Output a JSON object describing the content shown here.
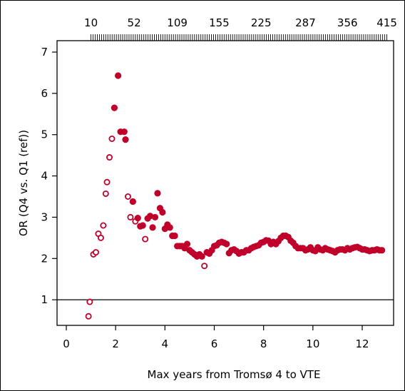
{
  "chart_data": {
    "type": "scatter",
    "title": "",
    "xlabel": "Max years from Tromsø 4 to VTE",
    "ylabel": "OR (Q4 vs. Q1 (ref))",
    "xlim": [
      -0.2,
      13.2
    ],
    "ylim": [
      0.0,
      7.3
    ],
    "x_ticks": [
      0,
      2,
      4,
      6,
      8,
      10,
      12
    ],
    "y_ticks": [
      1,
      2,
      3,
      4,
      5,
      6,
      7
    ],
    "reference_line_y": 1,
    "top_axis": {
      "description": "cumulative number of VTE events",
      "ticks": [
        {
          "x": 1.0,
          "label": "10"
        },
        {
          "x": 2.75,
          "label": "52"
        },
        {
          "x": 4.5,
          "label": "109"
        },
        {
          "x": 6.2,
          "label": "155"
        },
        {
          "x": 7.9,
          "label": "225"
        },
        {
          "x": 9.7,
          "label": "287"
        },
        {
          "x": 11.4,
          "label": "356"
        },
        {
          "x": 13.0,
          "label": "415"
        }
      ]
    },
    "marker_color": "#c0002a",
    "series": [
      {
        "marker": "open",
        "points": [
          [
            0.9,
            0.6
          ],
          [
            0.95,
            0.95
          ],
          [
            1.1,
            2.1
          ],
          [
            1.2,
            2.15
          ],
          [
            1.3,
            2.6
          ],
          [
            1.4,
            2.5
          ],
          [
            1.5,
            2.8
          ],
          [
            1.6,
            3.57
          ],
          [
            1.65,
            3.85
          ],
          [
            1.75,
            4.45
          ],
          [
            1.85,
            4.9
          ],
          [
            2.5,
            3.5
          ],
          [
            2.6,
            3.0
          ],
          [
            2.8,
            2.9
          ],
          [
            3.2,
            2.47
          ],
          [
            5.6,
            1.82
          ]
        ]
      },
      {
        "marker": "filled",
        "points": [
          [
            1.95,
            5.65
          ],
          [
            2.1,
            6.43
          ],
          [
            2.2,
            5.07
          ],
          [
            2.35,
            5.07
          ],
          [
            2.4,
            4.88
          ],
          [
            2.7,
            3.38
          ],
          [
            2.9,
            2.98
          ],
          [
            3.0,
            2.78
          ],
          [
            3.1,
            2.8
          ],
          [
            3.3,
            2.97
          ],
          [
            3.4,
            3.03
          ],
          [
            3.5,
            2.75
          ],
          [
            3.6,
            3.0
          ],
          [
            3.7,
            3.58
          ],
          [
            3.8,
            3.22
          ],
          [
            3.9,
            3.12
          ],
          [
            4.0,
            2.72
          ],
          [
            4.1,
            2.82
          ],
          [
            4.2,
            2.75
          ],
          [
            4.3,
            2.55
          ],
          [
            4.4,
            2.55
          ],
          [
            4.5,
            2.3
          ],
          [
            4.6,
            2.3
          ],
          [
            4.7,
            2.3
          ],
          [
            4.8,
            2.25
          ],
          [
            4.9,
            2.35
          ],
          [
            5.0,
            2.2
          ],
          [
            5.1,
            2.15
          ],
          [
            5.2,
            2.1
          ],
          [
            5.3,
            2.05
          ],
          [
            5.4,
            2.1
          ],
          [
            5.5,
            2.05
          ],
          [
            5.7,
            2.15
          ],
          [
            5.8,
            2.12
          ],
          [
            5.9,
            2.2
          ],
          [
            6.0,
            2.3
          ],
          [
            6.1,
            2.32
          ],
          [
            6.2,
            2.38
          ],
          [
            6.3,
            2.4
          ],
          [
            6.4,
            2.38
          ],
          [
            6.5,
            2.35
          ],
          [
            6.6,
            2.13
          ],
          [
            6.7,
            2.2
          ],
          [
            6.8,
            2.22
          ],
          [
            6.9,
            2.18
          ],
          [
            7.0,
            2.12
          ],
          [
            7.1,
            2.15
          ],
          [
            7.2,
            2.15
          ],
          [
            7.3,
            2.2
          ],
          [
            7.4,
            2.2
          ],
          [
            7.5,
            2.25
          ],
          [
            7.6,
            2.28
          ],
          [
            7.7,
            2.3
          ],
          [
            7.8,
            2.32
          ],
          [
            7.9,
            2.38
          ],
          [
            8.0,
            2.4
          ],
          [
            8.1,
            2.44
          ],
          [
            8.2,
            2.43
          ],
          [
            8.3,
            2.35
          ],
          [
            8.4,
            2.4
          ],
          [
            8.5,
            2.35
          ],
          [
            8.6,
            2.42
          ],
          [
            8.7,
            2.5
          ],
          [
            8.8,
            2.55
          ],
          [
            8.9,
            2.55
          ],
          [
            9.0,
            2.52
          ],
          [
            9.1,
            2.43
          ],
          [
            9.2,
            2.38
          ],
          [
            9.3,
            2.3
          ],
          [
            9.4,
            2.25
          ],
          [
            9.5,
            2.25
          ],
          [
            9.6,
            2.25
          ],
          [
            9.7,
            2.2
          ],
          [
            9.8,
            2.22
          ],
          [
            9.9,
            2.27
          ],
          [
            10.0,
            2.2
          ],
          [
            10.1,
            2.18
          ],
          [
            10.2,
            2.27
          ],
          [
            10.3,
            2.22
          ],
          [
            10.4,
            2.2
          ],
          [
            10.5,
            2.25
          ],
          [
            10.6,
            2.22
          ],
          [
            10.7,
            2.2
          ],
          [
            10.8,
            2.18
          ],
          [
            10.9,
            2.15
          ],
          [
            11.0,
            2.2
          ],
          [
            11.1,
            2.22
          ],
          [
            11.2,
            2.22
          ],
          [
            11.3,
            2.2
          ],
          [
            11.4,
            2.25
          ],
          [
            11.5,
            2.22
          ],
          [
            11.6,
            2.25
          ],
          [
            11.7,
            2.27
          ],
          [
            11.8,
            2.28
          ],
          [
            11.9,
            2.25
          ],
          [
            12.0,
            2.22
          ],
          [
            12.1,
            2.22
          ],
          [
            12.2,
            2.2
          ],
          [
            12.3,
            2.18
          ],
          [
            12.4,
            2.2
          ],
          [
            12.5,
            2.2
          ],
          [
            12.6,
            2.22
          ],
          [
            12.7,
            2.2
          ],
          [
            12.8,
            2.2
          ]
        ]
      }
    ]
  }
}
